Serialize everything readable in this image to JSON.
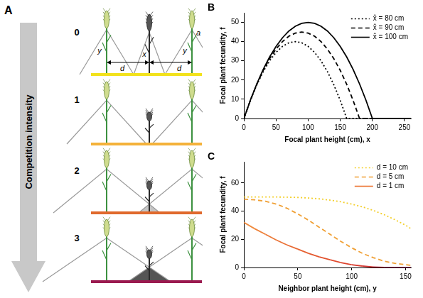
{
  "diagram": {
    "panel_label": "A",
    "arrow_label": "Competition intensity",
    "rows": [
      {
        "label": "0",
        "color": "#f2e21c"
      },
      {
        "label": "1",
        "color": "#f4b23a"
      },
      {
        "label": "2",
        "color": "#e0692c"
      },
      {
        "label": "3",
        "color": "#9a1a4f"
      }
    ],
    "annotations": {
      "neighbor_height": "y",
      "focal_height": "x",
      "angle": "a",
      "distance": "d"
    }
  },
  "chart_data": [
    {
      "type": "line",
      "panel_label": "B",
      "x_label": "Focal plant height (cm), x",
      "y_label": "Focal plant fecundity, f",
      "x": [
        0,
        10,
        20,
        30,
        40,
        50,
        60,
        70,
        80,
        90,
        100,
        110,
        120,
        130,
        140,
        150,
        160,
        170,
        180,
        190,
        200,
        210,
        220,
        230,
        240,
        250,
        260
      ],
      "series": [
        {
          "name": "x̂ = 80 cm",
          "color": "#000000",
          "line_style": "dotted",
          "values": [
            0,
            9.4,
            17.5,
            24.4,
            30,
            34.4,
            37.5,
            39.4,
            40,
            39.4,
            37.5,
            34.4,
            30,
            24.4,
            17.5,
            9.4,
            0,
            0,
            0,
            0,
            0,
            0,
            0,
            0,
            0,
            0,
            0
          ]
        },
        {
          "name": "x̂ = 90 cm",
          "color": "#000000",
          "line_style": "dashed",
          "values": [
            0,
            9.4,
            17.8,
            25,
            31.1,
            36.1,
            40,
            42.8,
            44.4,
            45,
            44.4,
            42.8,
            40,
            36.1,
            31.1,
            25,
            17.8,
            9.4,
            0,
            0,
            0,
            0,
            0,
            0,
            0,
            0,
            0
          ]
        },
        {
          "name": "x̂ = 100 cm",
          "color": "#000000",
          "line_style": "solid",
          "values": [
            0,
            9.5,
            18,
            25.5,
            32,
            37.5,
            42,
            45.5,
            48,
            49.5,
            50,
            49.5,
            48,
            45.5,
            42,
            37.5,
            32,
            25.5,
            18,
            9.5,
            0,
            0,
            0,
            0,
            0,
            0,
            0
          ]
        }
      ],
      "xlim": [
        0,
        260
      ],
      "xticks": [
        0,
        50,
        100,
        150,
        200,
        250
      ],
      "ylim": [
        0,
        55
      ],
      "yticks": [
        0,
        10,
        20,
        30,
        40,
        50
      ],
      "grid": false,
      "legend": "top right"
    },
    {
      "type": "line",
      "panel_label": "C",
      "x_label": "Neighbor plant height (cm), y",
      "y_label": "Focal plant fecundity, f",
      "x": [
        0,
        10,
        20,
        30,
        40,
        50,
        60,
        70,
        80,
        90,
        100,
        110,
        120,
        130,
        140,
        150,
        155
      ],
      "series": [
        {
          "name": "d = 10 cm",
          "color": "#f3cf2b",
          "line_style": "dotted",
          "values": [
            50,
            50,
            50,
            50,
            49.9,
            49.7,
            49.3,
            48.7,
            47.8,
            46.6,
            45,
            43,
            40.5,
            37.5,
            34,
            30,
            27.5
          ]
        },
        {
          "name": "d = 5 cm",
          "color": "#f0a035",
          "line_style": "dashed",
          "values": [
            48.5,
            48,
            47,
            45,
            42,
            38,
            33.5,
            28.5,
            23.5,
            18.5,
            14,
            10,
            7,
            4.5,
            3,
            2,
            1.5
          ]
        },
        {
          "name": "d = 1 cm",
          "color": "#ec7534",
          "line_style": "solid",
          "colors": [
            "#f08a3c",
            "#ee823a",
            "#ec7a38",
            "#ea7236",
            "#e86a34",
            "#e66232",
            "#e45a30",
            "#e2522e",
            "#e04a2e",
            "#dc432e",
            "#d83c30",
            "#d03634",
            "#c42a40",
            "#b01e52",
            "#a8195a",
            "#a8195a",
            "#a8195a"
          ],
          "values": [
            32,
            27.5,
            23.5,
            19.5,
            16,
            13,
            10,
            7.5,
            5.5,
            3.5,
            2,
            1,
            0.3,
            0,
            0,
            0,
            0
          ]
        }
      ],
      "xlim": [
        0,
        155
      ],
      "xticks": [
        0,
        50,
        100,
        150
      ],
      "ylim": [
        0,
        75
      ],
      "yticks": [
        0,
        20,
        40,
        60
      ],
      "grid": false,
      "legend": "top right"
    }
  ]
}
